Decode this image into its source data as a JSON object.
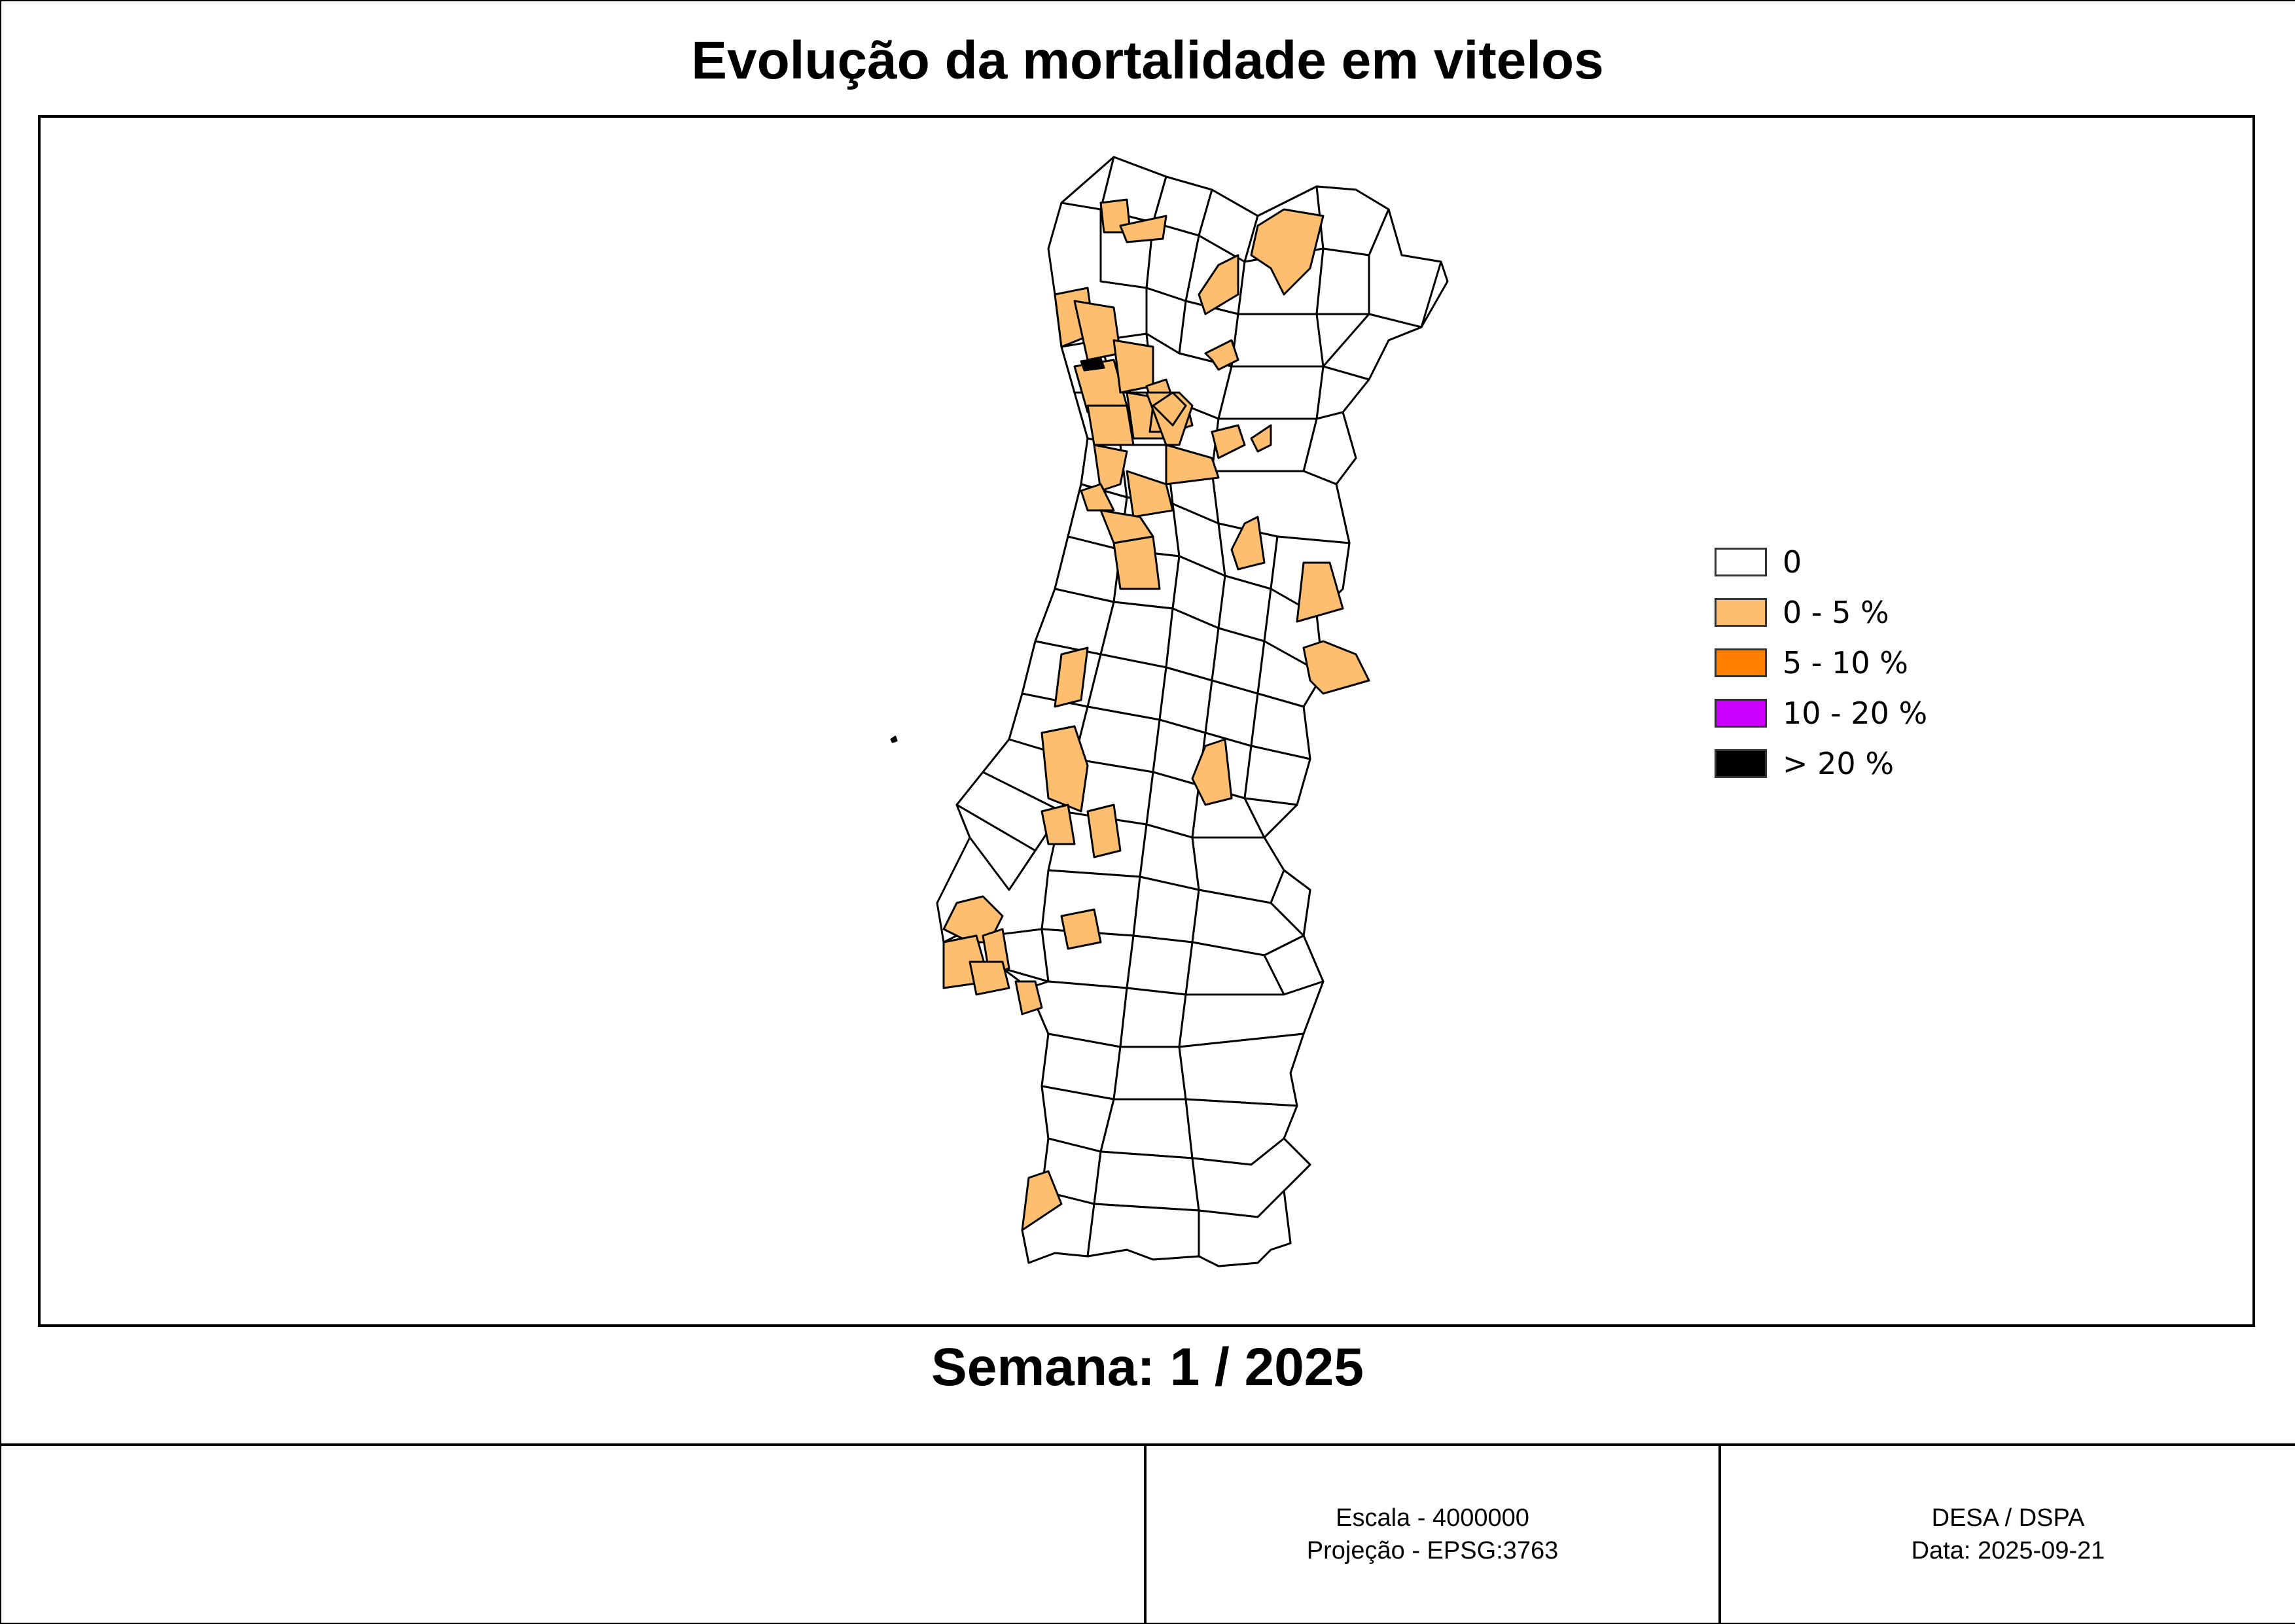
{
  "title": "Evolução da mortalidade em vitelos",
  "subtitle": "Semana: 1 / 2025",
  "legend": {
    "items": [
      {
        "label": "0",
        "color": "#ffffff"
      },
      {
        "label": "0 - 5 %",
        "color": "#fdbf6f"
      },
      {
        "label": "5 - 10 %",
        "color": "#ff7f00"
      },
      {
        "label": "10 - 20 %",
        "color": "#cc00ff"
      },
      {
        "label": "> 20 %",
        "color": "#000000"
      }
    ]
  },
  "footer": {
    "scale": "Escala - 4000000",
    "projection": "Projeção - EPSG:3763",
    "org": "DESA / DSPA",
    "date": "Data: 2025-09-21"
  },
  "map": {
    "region": "Portugal Continental",
    "unit": "concelho",
    "colors": {
      "stroke": "#000000",
      "zero": "#ffffff",
      "low": "#fdbf6f",
      "high": "#000000"
    }
  }
}
